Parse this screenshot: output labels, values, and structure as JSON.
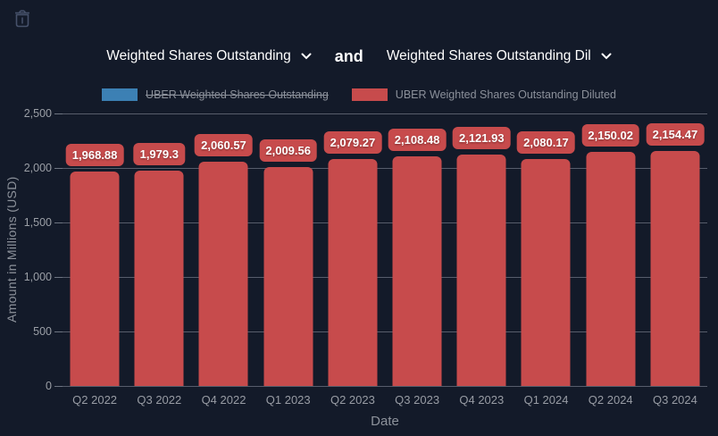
{
  "toolbar": {
    "trash_icon": "trash-icon"
  },
  "selectors": {
    "metric1": {
      "label": "Weighted Shares Outstanding",
      "icon": "chevron-down-icon"
    },
    "connector": "and",
    "metric2": {
      "label": "Weighted Shares Outstanding Dil",
      "icon": "chevron-down-icon"
    }
  },
  "legend": [
    {
      "label": "UBER Weighted Shares Outstanding",
      "color": "#3c80b4",
      "hidden": true
    },
    {
      "label": "UBER Weighted Shares Outstanding Diluted",
      "color": "#c74b4c",
      "hidden": false
    }
  ],
  "chart_data": {
    "type": "bar",
    "categories": [
      "Q2 2022",
      "Q3 2022",
      "Q4 2022",
      "Q1 2023",
      "Q2 2023",
      "Q3 2023",
      "Q4 2023",
      "Q1 2024",
      "Q2 2024",
      "Q3 2024"
    ],
    "series": [
      {
        "name": "UBER Weighted Shares Outstanding",
        "color": "#3c80b4",
        "hidden": true,
        "values": []
      },
      {
        "name": "UBER Weighted Shares Outstanding Diluted",
        "color": "#c74b4c",
        "hidden": false,
        "values": [
          1968.88,
          1979.3,
          2060.57,
          2009.56,
          2079.27,
          2108.48,
          2121.93,
          2080.17,
          2150.02,
          2154.47
        ],
        "value_labels": [
          "1,968.88",
          "1,979.3",
          "2,060.57",
          "2,009.56",
          "2,079.27",
          "2,108.48",
          "2,121.93",
          "2,080.17",
          "2,150.02",
          "2,154.47"
        ]
      }
    ],
    "xlabel": "Date",
    "ylabel": "Amount in Millions (USD)",
    "ylim": [
      0,
      2500
    ],
    "yticks": [
      0,
      500,
      1000,
      1500,
      2000,
      2500
    ],
    "ytick_labels": [
      "0",
      "500",
      "1,000",
      "1,500",
      "2,000",
      "2,500"
    ],
    "grid": true,
    "legend_position": "top"
  },
  "colors": {
    "background": "#131a29",
    "bar_red": "#c74b4c",
    "series_blue": "#3c80b4",
    "gridline": "rgba(170,176,188,0.45)",
    "axis_text": "#9b9fa6",
    "legend_text": "#8b909a",
    "icon_gray": "#46516a"
  }
}
